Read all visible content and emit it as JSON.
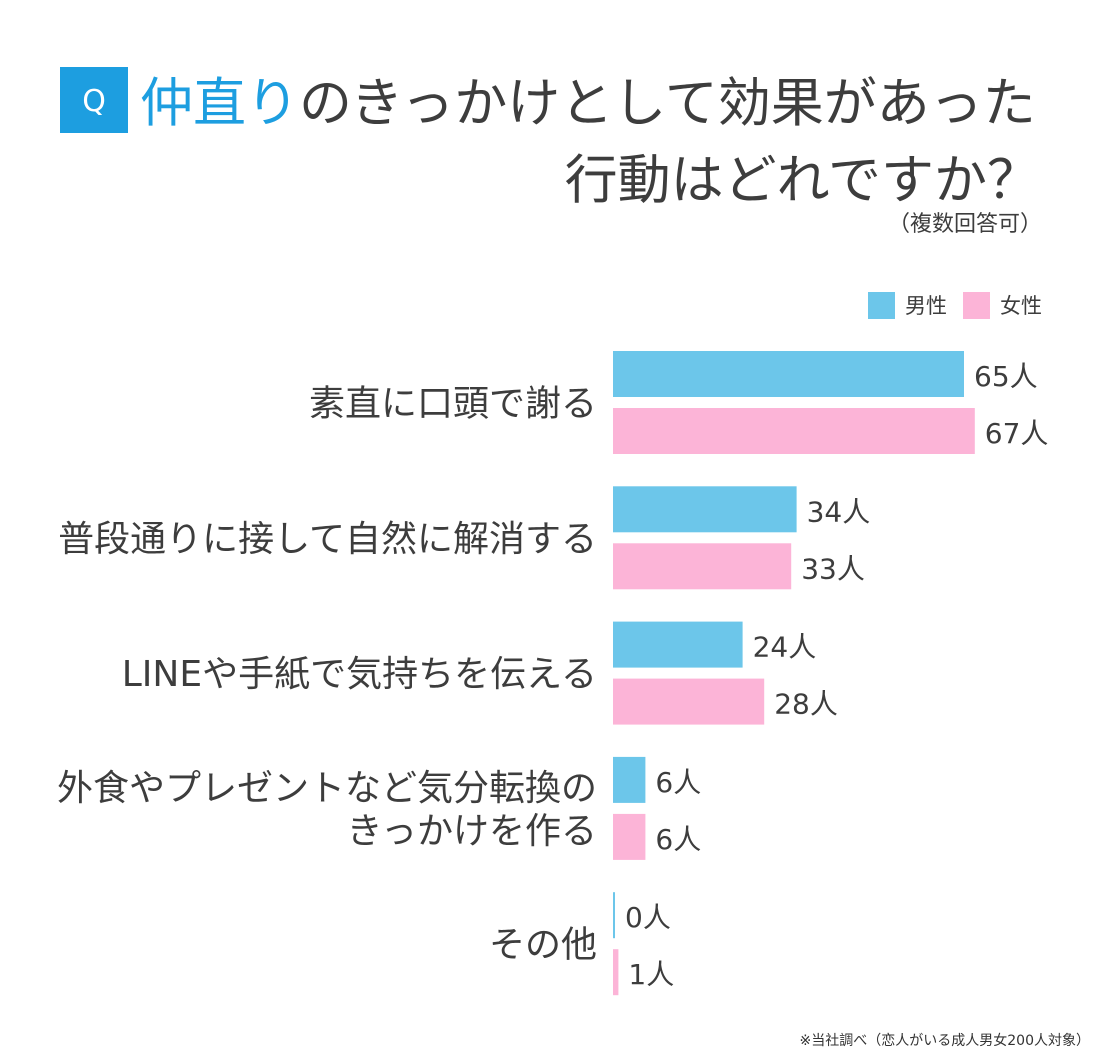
{
  "header": {
    "badge": "Q"
  },
  "colors": {
    "accent": "#1d9ee0",
    "text": "#3d3d3d",
    "background": "#ffffff"
  },
  "chart_data": {
    "type": "bar",
    "orientation": "horizontal",
    "title": "仲直りのきっかけとして効果があった行動はどれですか？",
    "title_highlight": "仲直り",
    "subtitle": "（複数回答可）",
    "categories": [
      "素直に口頭で謝る",
      "普段通りに接して自然に解消する",
      "LINEや手紙で気持ちを伝える",
      "外食やプレゼントなど気分転換のきっかけを作る",
      "その他"
    ],
    "series": [
      {
        "name": "男性",
        "color": "#6cc6ea",
        "values": [
          65,
          34,
          24,
          6,
          0
        ]
      },
      {
        "name": "女性",
        "color": "#fcb4d7",
        "values": [
          67,
          33,
          28,
          6,
          1
        ]
      }
    ],
    "value_suffix": "人",
    "legend": "top-right",
    "grid": false
  },
  "footer": {
    "note": "※当社調べ（恋人がいる成人男女200人対象）"
  }
}
